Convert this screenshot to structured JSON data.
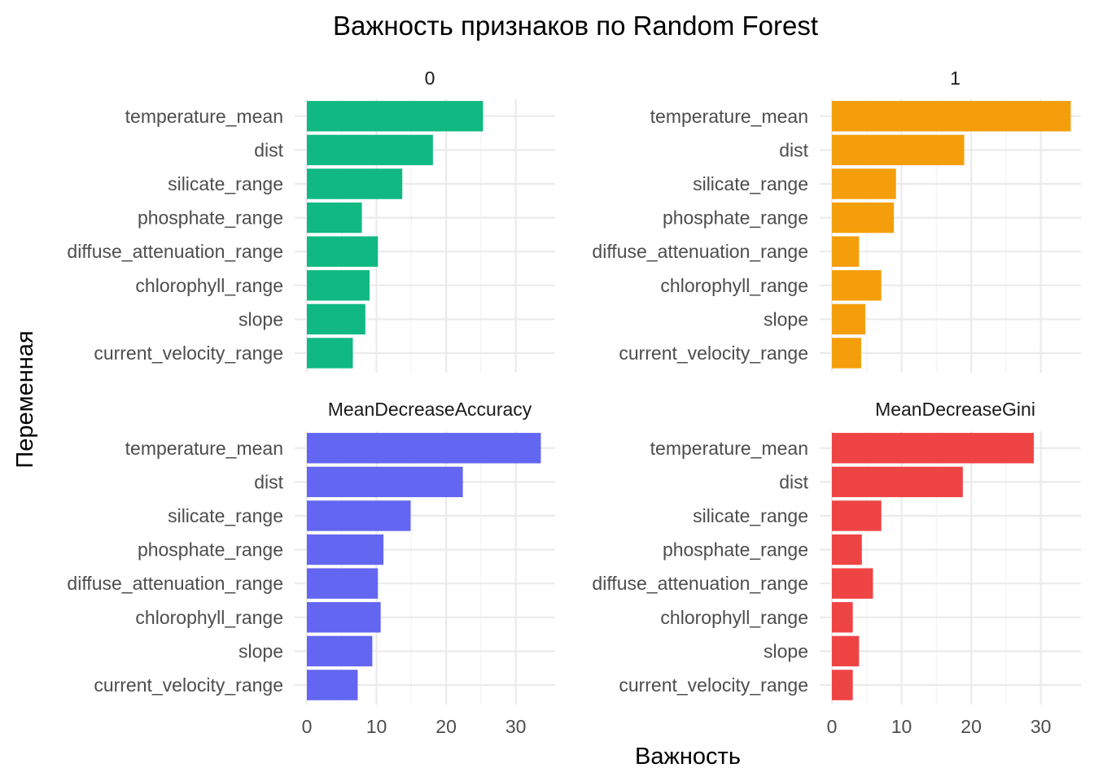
{
  "chart_data": {
    "type": "bar",
    "orientation": "horizontal",
    "title": "Важность признаков по Random Forest",
    "xlabel": "Важность",
    "ylabel": "Переменная",
    "xlim": [
      0,
      35
    ],
    "x_ticks": [
      0,
      10,
      20,
      30
    ],
    "grid": true,
    "legend": "none",
    "categories": [
      "temperature_mean",
      "dist",
      "silicate_range",
      "phosphate_range",
      "diffuse_attenuation_range",
      "chlorophyll_range",
      "slope",
      "current_velocity_range"
    ],
    "facets": [
      {
        "label": "0",
        "color": "#10B981",
        "values": [
          25.3,
          18.1,
          13.7,
          7.9,
          10.2,
          9.0,
          8.4,
          6.6
        ]
      },
      {
        "label": "1",
        "color": "#F59E0B",
        "values": [
          34.3,
          19.0,
          9.2,
          8.9,
          3.9,
          7.1,
          4.8,
          4.2
        ]
      },
      {
        "label": "MeanDecreaseAccuracy",
        "color": "#6366F1",
        "values": [
          33.6,
          22.4,
          14.9,
          11.0,
          10.2,
          10.6,
          9.4,
          7.3
        ]
      },
      {
        "label": "MeanDecreaseGini",
        "color": "#EF4444",
        "values": [
          29.0,
          18.8,
          7.1,
          4.3,
          5.9,
          3.0,
          3.9,
          3.0
        ]
      }
    ]
  }
}
